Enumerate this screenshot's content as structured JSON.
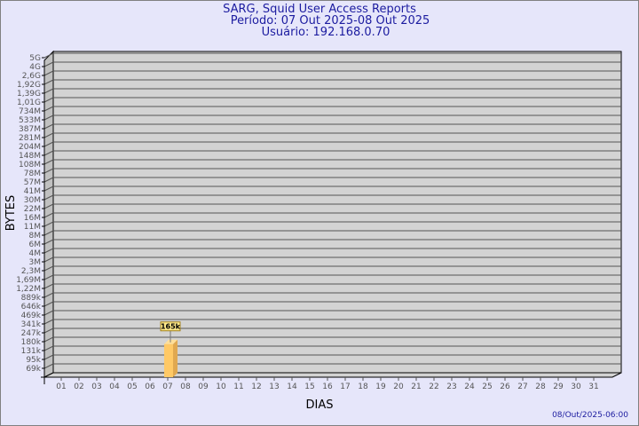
{
  "chart_data": {
    "type": "bar",
    "title": "SARG, Squid User Access Reports",
    "subtitle_period": "Período: 07 Out 2025-08 Out 2025",
    "subtitle_user": "Usuário: 192.168.0.70",
    "xlabel": "DIAS",
    "ylabel": "BYTES",
    "y_scale": "log",
    "grid": true,
    "y_ticks": [
      "69k",
      "95k",
      "131k",
      "180k",
      "247k",
      "341k",
      "469k",
      "646k",
      "889k",
      "1,22M",
      "1,69M",
      "2,3M",
      "3M",
      "4M",
      "6M",
      "8M",
      "11M",
      "16M",
      "22M",
      "30M",
      "41M",
      "57M",
      "78M",
      "108M",
      "148M",
      "204M",
      "281M",
      "387M",
      "533M",
      "734M",
      "1,01G",
      "1,39G",
      "1,92G",
      "2,6G",
      "4G",
      "5G"
    ],
    "y_tick_values": [
      69000,
      95000,
      131000,
      180000,
      247000,
      341000,
      469000,
      646000,
      889000,
      1220000,
      1690000,
      2300000,
      3000000,
      4000000,
      6000000,
      8000000,
      11000000,
      16000000,
      22000000,
      30000000,
      41000000,
      57000000,
      78000000,
      108000000,
      148000000,
      204000000,
      281000000,
      387000000,
      533000000,
      734000000,
      1010000000,
      1390000000,
      1920000000,
      2600000000,
      4000000000,
      5000000000
    ],
    "categories": [
      "01",
      "02",
      "03",
      "04",
      "05",
      "06",
      "07",
      "08",
      "09",
      "10",
      "11",
      "12",
      "13",
      "14",
      "15",
      "16",
      "17",
      "18",
      "19",
      "20",
      "21",
      "22",
      "23",
      "24",
      "25",
      "26",
      "27",
      "28",
      "29",
      "30",
      "31"
    ],
    "bars": [
      {
        "category": "07",
        "value": 165000,
        "label": "165k"
      }
    ],
    "colors": {
      "bar": "#ffc966",
      "bar_side": "#e0a850",
      "plot_bg": "#d3d3d3",
      "title": "#1c1ca0"
    }
  },
  "footer": {
    "timestamp": "08/Out/2025-06:00"
  }
}
